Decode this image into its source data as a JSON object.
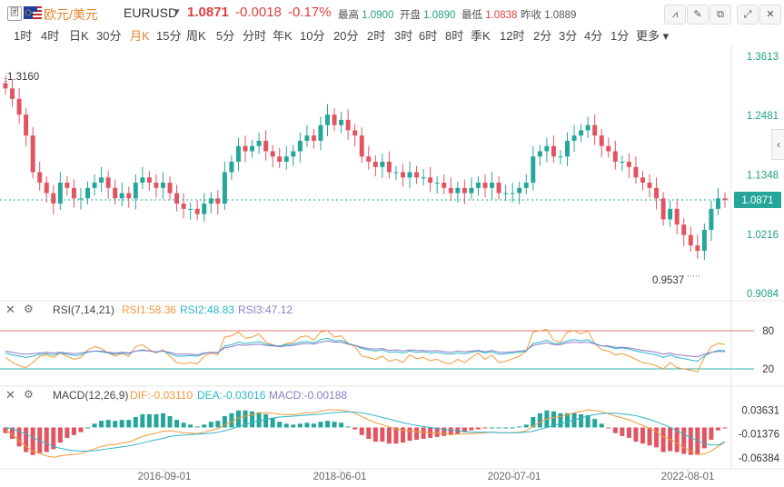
{
  "header": {
    "lock_label": "团",
    "pair_name": "欧元/美元",
    "symbol": "EURUSD",
    "price": "1.0871",
    "change": "-0.0018",
    "change_pct": "-0.17%",
    "high_label": "最高",
    "high": "1.0900",
    "open_label": "开盘",
    "open": "1.0890",
    "low_label": "最低",
    "low": "1.0838",
    "prev_label": "昨收",
    "prev": "1.0889"
  },
  "tabs": [
    "1时",
    "4时",
    "日K",
    "30分",
    "月K",
    "15分",
    "周K",
    "5分",
    "分时",
    "年K",
    "10分",
    "20分",
    "2时",
    "3时",
    "6时",
    "8时",
    "季K",
    "12时",
    "2分",
    "3分",
    "4分",
    "1分",
    "更多"
  ],
  "active_tab": "月K",
  "colors": {
    "up": "#26a69a",
    "down": "#e05561",
    "rsi1": "#f39a3a",
    "rsi2": "#2bb6c9",
    "rsi3": "#8f7cc8",
    "dif": "#f39a3a",
    "dea": "#2bb6c9"
  },
  "rsi_panel": {
    "title": "RSI(7,14,21)",
    "rsi1_label": "RSI1:58.36",
    "rsi2_label": "RSI2:48.83",
    "rsi3_label": "RSI3:47.12",
    "upper": "80",
    "lower": "20"
  },
  "macd_panel": {
    "title": "MACD(12,26,9)",
    "dif_label": "DIF:-0.03110",
    "dea_label": "DEA:-0.03016",
    "macd_label": "MACD:-0.00188"
  },
  "chart_data": [
    {
      "type": "candlestick",
      "title": "EURUSD 月K",
      "ylim": [
        0.9084,
        1.3613
      ],
      "y_ticks": [
        "1.3613",
        "1.2481",
        "1.1348",
        "1.0216",
        "0.9084"
      ],
      "last_price": "1.0871",
      "annotations": {
        "max": "1.3160",
        "min": "0.9537"
      },
      "x_ticks": [
        "2016-09-01",
        "2018-06-01",
        "2020-07-01",
        "2022-08-01"
      ],
      "closes": [
        1.3,
        1.28,
        1.25,
        1.21,
        1.14,
        1.12,
        1.1,
        1.08,
        1.12,
        1.11,
        1.09,
        1.09,
        1.11,
        1.12,
        1.13,
        1.11,
        1.09,
        1.1,
        1.09,
        1.12,
        1.13,
        1.12,
        1.11,
        1.12,
        1.1,
        1.08,
        1.07,
        1.07,
        1.06,
        1.08,
        1.09,
        1.08,
        1.14,
        1.16,
        1.19,
        1.18,
        1.19,
        1.2,
        1.18,
        1.17,
        1.16,
        1.17,
        1.18,
        1.2,
        1.21,
        1.2,
        1.23,
        1.25,
        1.23,
        1.24,
        1.22,
        1.21,
        1.17,
        1.16,
        1.15,
        1.16,
        1.14,
        1.14,
        1.13,
        1.14,
        1.13,
        1.13,
        1.12,
        1.12,
        1.11,
        1.1,
        1.11,
        1.1,
        1.11,
        1.12,
        1.11,
        1.12,
        1.1,
        1.1,
        1.1,
        1.11,
        1.12,
        1.17,
        1.18,
        1.19,
        1.17,
        1.17,
        1.2,
        1.21,
        1.22,
        1.23,
        1.21,
        1.19,
        1.18,
        1.16,
        1.16,
        1.15,
        1.13,
        1.12,
        1.11,
        1.09,
        1.05,
        1.07,
        1.04,
        1.02,
        1.0,
        0.99,
        1.03,
        1.07,
        1.09,
        1.0871
      ]
    },
    {
      "type": "line",
      "title": "RSI(7,14,21)",
      "ylim": [
        0,
        100
      ],
      "series": [
        {
          "name": "RSI1",
          "values": [
            38,
            30,
            25,
            22,
            30,
            40,
            42,
            38,
            45,
            40,
            35,
            38,
            50,
            55,
            52,
            45,
            40,
            44,
            40,
            55,
            58,
            50,
            45,
            50,
            40,
            30,
            28,
            30,
            28,
            40,
            45,
            42,
            70,
            72,
            78,
            68,
            70,
            75,
            62,
            58,
            55,
            60,
            62,
            70,
            72,
            65,
            78,
            80,
            70,
            72,
            60,
            55,
            40,
            38,
            35,
            40,
            32,
            35,
            30,
            42,
            36,
            38,
            33,
            35,
            30,
            28,
            35,
            30,
            38,
            45,
            35,
            42,
            30,
            32,
            36,
            40,
            48,
            78,
            80,
            82,
            65,
            62,
            78,
            80,
            75,
            80,
            60,
            50,
            48,
            42,
            44,
            40,
            35,
            30,
            28,
            25,
            20,
            30,
            22,
            20,
            18,
            15,
            38,
            55,
            60,
            58.36
          ]
        },
        {
          "name": "RSI2",
          "values": [
            45,
            42,
            40,
            38,
            40,
            43,
            44,
            42,
            45,
            43,
            41,
            42,
            46,
            48,
            47,
            45,
            43,
            45,
            44,
            48,
            50,
            48,
            46,
            48,
            44,
            40,
            40,
            41,
            40,
            44,
            46,
            45,
            56,
            58,
            62,
            60,
            61,
            63,
            59,
            57,
            56,
            58,
            59,
            62,
            63,
            61,
            66,
            68,
            64,
            65,
            60,
            57,
            52,
            50,
            48,
            50,
            46,
            47,
            45,
            48,
            46,
            47,
            45,
            46,
            44,
            43,
            45,
            44,
            46,
            48,
            45,
            47,
            43,
            44,
            45,
            46,
            48,
            60,
            62,
            65,
            60,
            60,
            64,
            66,
            64,
            66,
            60,
            56,
            55,
            52,
            53,
            51,
            48,
            46,
            44,
            42,
            38,
            42,
            38,
            36,
            34,
            32,
            40,
            46,
            49,
            48.83
          ]
        },
        {
          "name": "RSI3",
          "values": [
            48,
            46,
            44,
            43,
            44,
            45,
            46,
            45,
            46,
            45,
            44,
            45,
            47,
            48,
            48,
            46,
            45,
            46,
            45,
            48,
            49,
            48,
            47,
            48,
            46,
            43,
            43,
            43,
            42,
            45,
            46,
            46,
            53,
            55,
            58,
            57,
            58,
            59,
            57,
            56,
            55,
            56,
            57,
            59,
            60,
            59,
            62,
            64,
            62,
            62,
            59,
            57,
            54,
            52,
            51,
            52,
            49,
            50,
            48,
            50,
            49,
            49,
            48,
            49,
            47,
            46,
            48,
            47,
            48,
            49,
            47,
            49,
            46,
            46,
            47,
            48,
            49,
            57,
            59,
            61,
            58,
            58,
            61,
            62,
            61,
            62,
            59,
            56,
            56,
            54,
            54,
            53,
            51,
            49,
            48,
            46,
            43,
            45,
            42,
            41,
            40,
            39,
            43,
            46,
            47.5,
            47.12
          ]
        }
      ],
      "levels": [
        80,
        20
      ]
    },
    {
      "type": "bar+line",
      "title": "MACD(12,26,9)",
      "y_ticks": [
        "0.03631",
        "-0.01376",
        "-0.06384"
      ],
      "ylim": [
        -0.0758,
        0.045
      ],
      "dif": [
        -0.006,
        -0.015,
        -0.028,
        -0.04,
        -0.05,
        -0.055,
        -0.06,
        -0.063,
        -0.06,
        -0.058,
        -0.057,
        -0.055,
        -0.05,
        -0.045,
        -0.04,
        -0.037,
        -0.036,
        -0.033,
        -0.031,
        -0.025,
        -0.019,
        -0.015,
        -0.012,
        -0.008,
        -0.007,
        -0.009,
        -0.011,
        -0.012,
        -0.013,
        -0.01,
        -0.006,
        -0.003,
        0.005,
        0.012,
        0.02,
        0.024,
        0.027,
        0.03,
        0.031,
        0.03,
        0.028,
        0.027,
        0.027,
        0.029,
        0.031,
        0.031,
        0.034,
        0.037,
        0.037,
        0.037,
        0.034,
        0.03,
        0.023,
        0.016,
        0.01,
        0.006,
        0.001,
        -0.003,
        -0.006,
        -0.007,
        -0.009,
        -0.01,
        -0.011,
        -0.012,
        -0.013,
        -0.014,
        -0.014,
        -0.014,
        -0.013,
        -0.012,
        -0.011,
        -0.01,
        -0.011,
        -0.011,
        -0.011,
        -0.01,
        -0.007,
        0.003,
        0.011,
        0.018,
        0.021,
        0.023,
        0.027,
        0.031,
        0.034,
        0.037,
        0.036,
        0.033,
        0.029,
        0.024,
        0.02,
        0.016,
        0.01,
        0.004,
        -0.002,
        -0.009,
        -0.02,
        -0.025,
        -0.033,
        -0.042,
        -0.05,
        -0.057,
        -0.056,
        -0.05,
        -0.04,
        -0.0311
      ],
      "dea": [
        0.0,
        -0.003,
        -0.008,
        -0.014,
        -0.021,
        -0.028,
        -0.034,
        -0.04,
        -0.044,
        -0.047,
        -0.049,
        -0.05,
        -0.05,
        -0.049,
        -0.047,
        -0.045,
        -0.043,
        -0.041,
        -0.039,
        -0.036,
        -0.033,
        -0.029,
        -0.026,
        -0.023,
        -0.019,
        -0.017,
        -0.016,
        -0.015,
        -0.014,
        -0.013,
        -0.012,
        -0.01,
        -0.007,
        -0.003,
        0.002,
        0.006,
        0.01,
        0.014,
        0.017,
        0.02,
        0.022,
        0.023,
        0.024,
        0.025,
        0.026,
        0.027,
        0.028,
        0.03,
        0.031,
        0.032,
        0.033,
        0.032,
        0.031,
        0.028,
        0.025,
        0.021,
        0.018,
        0.014,
        0.01,
        0.007,
        0.004,
        0.002,
        0.0,
        -0.002,
        -0.004,
        -0.006,
        -0.007,
        -0.009,
        -0.01,
        -0.01,
        -0.01,
        -0.01,
        -0.011,
        -0.011,
        -0.011,
        -0.011,
        -0.01,
        -0.008,
        -0.004,
        0.0,
        0.004,
        0.008,
        0.012,
        0.016,
        0.02,
        0.024,
        0.027,
        0.029,
        0.03,
        0.03,
        0.029,
        0.027,
        0.025,
        0.021,
        0.017,
        0.012,
        0.006,
        0.0,
        -0.007,
        -0.014,
        -0.021,
        -0.028,
        -0.034,
        -0.037,
        -0.037,
        -0.03016
      ]
    }
  ]
}
